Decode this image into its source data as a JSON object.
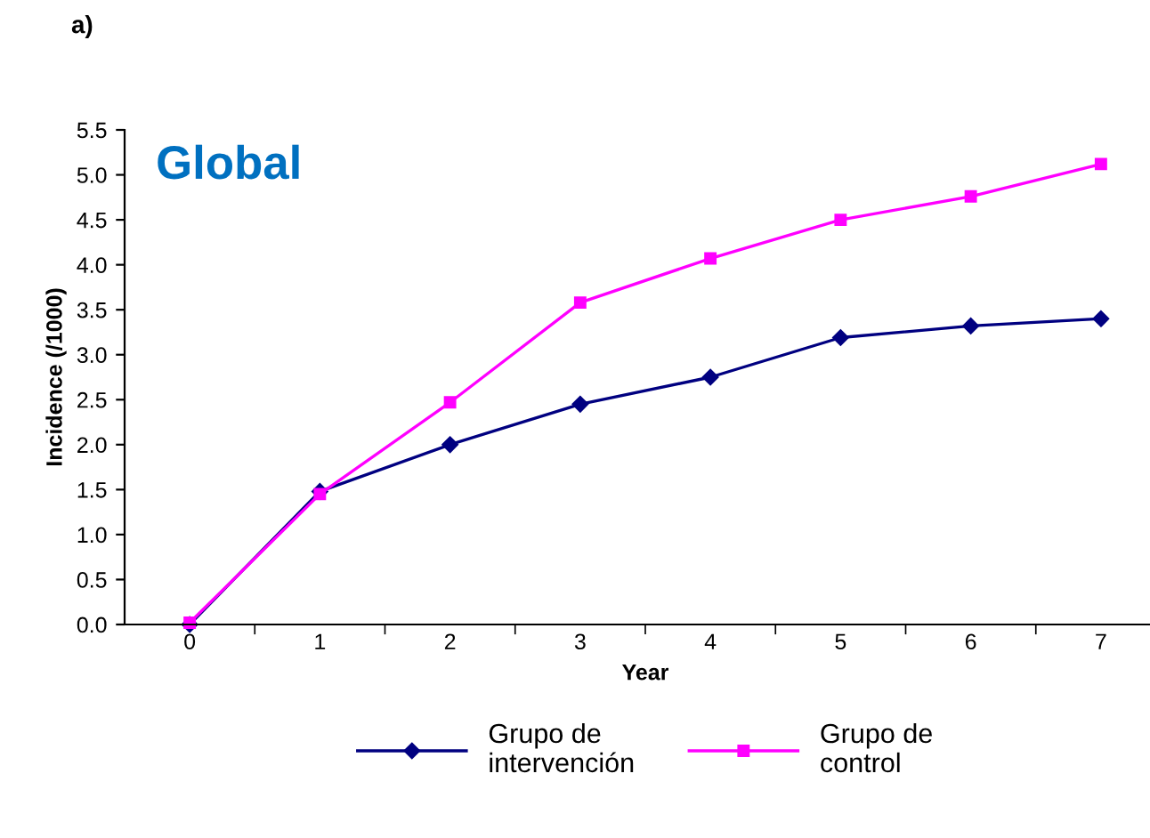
{
  "chart_data": {
    "type": "line",
    "title": "Global",
    "xlabel": "Year",
    "ylabel": "Incidence (/1000)",
    "annotations": [
      "a)"
    ],
    "categories": [
      "0",
      "1",
      "2",
      "3",
      "4",
      "5",
      "6",
      "7"
    ],
    "series": [
      {
        "name": "Grupo de\nintervención",
        "color": "#000080",
        "marker": "diamond",
        "values": [
          0.0,
          1.48,
          2.0,
          2.45,
          2.75,
          3.19,
          3.32,
          3.4
        ]
      },
      {
        "name": "Grupo de\ncontrol",
        "color": "#ff00ff",
        "marker": "square",
        "values": [
          0.02,
          1.45,
          2.47,
          3.58,
          4.07,
          4.5,
          4.76,
          5.12
        ]
      }
    ],
    "ylim": [
      0,
      5.5
    ],
    "yticks": [
      {
        "value": 0,
        "label": "0.0"
      },
      {
        "value": 0.5,
        "label": "0.5"
      },
      {
        "value": 1,
        "label": "1.0"
      },
      {
        "value": 1.5,
        "label": "1.5"
      },
      {
        "value": 2,
        "label": "2.0"
      },
      {
        "value": 2.5,
        "label": "2.5"
      },
      {
        "value": 3,
        "label": "3.0"
      },
      {
        "value": 3.5,
        "label": "3.5"
      },
      {
        "value": 4,
        "label": "4.0"
      },
      {
        "value": 4.5,
        "label": "4.5"
      },
      {
        "value": 5,
        "label": "5.0"
      },
      {
        "value": 5.5,
        "label": "5.5"
      }
    ],
    "grid": false,
    "legend": "bottom"
  }
}
